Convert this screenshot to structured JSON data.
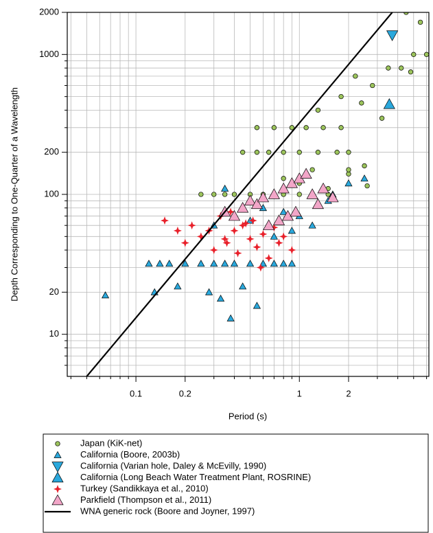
{
  "chart_data": {
    "type": "scatter",
    "x_label": "Period (s)",
    "y_label": "Depth Corresponding to One-Quarter of a Wavelength",
    "log_x": true,
    "log_y": true,
    "grid": true,
    "legend": "bottom",
    "xlim": [
      0.038,
      6.2
    ],
    "ylim": [
      5,
      2000
    ],
    "xticks": [
      0.1,
      0.2,
      1,
      2
    ],
    "yticks": [
      10,
      20,
      100,
      200,
      1000,
      2000
    ],
    "x_minor_ticks": [
      0.04,
      0.05,
      0.06,
      0.07,
      0.08,
      0.09,
      0.3,
      0.4,
      0.5,
      0.6,
      0.7,
      0.8,
      0.9,
      3,
      4,
      5,
      6
    ],
    "y_minor_ticks": [
      6,
      7,
      8,
      9,
      30,
      40,
      50,
      60,
      70,
      80,
      90,
      300,
      400,
      500,
      600,
      700,
      800,
      900
    ],
    "series": [
      {
        "name": "Japan (KiK-net)",
        "color": "#9cc45c",
        "marker": "circle",
        "x": [
          0.25,
          0.3,
          0.35,
          0.4,
          0.5,
          0.6,
          0.7,
          0.8,
          1.0,
          1.2,
          1.5,
          0.45,
          0.55,
          0.65,
          0.8,
          1.0,
          1.3,
          1.7,
          2.0,
          0.55,
          0.7,
          0.9,
          1.1,
          1.4,
          1.8,
          0.8,
          1.0,
          1.2,
          1.5,
          2.0,
          2.5,
          1.3,
          1.8,
          2.2,
          2.8,
          3.5,
          4.5,
          5.0,
          5.5,
          6.0,
          4.8,
          4.2,
          3.2,
          2.4,
          2.0,
          2.6
        ],
        "values": [
          100,
          100,
          100,
          100,
          100,
          100,
          100,
          100,
          100,
          100,
          100,
          200,
          200,
          200,
          200,
          200,
          200,
          200,
          200,
          300,
          300,
          300,
          300,
          300,
          300,
          130,
          120,
          150,
          110,
          140,
          160,
          400,
          500,
          700,
          600,
          800,
          2000,
          1000,
          1700,
          1000,
          750,
          800,
          350,
          450,
          150,
          115
        ]
      },
      {
        "name": "California (Boore, 2003b)",
        "color": "#2aa8dc",
        "marker": "triangle-up",
        "x": [
          0.065,
          0.12,
          0.14,
          0.16,
          0.2,
          0.25,
          0.3,
          0.35,
          0.4,
          0.5,
          0.6,
          0.7,
          0.8,
          0.13,
          0.18,
          0.28,
          0.33,
          0.45,
          0.55,
          0.38,
          0.3,
          0.4,
          0.5,
          0.6,
          0.8,
          1.0,
          1.3,
          1.6,
          2.0,
          2.5,
          0.7,
          0.9,
          1.2,
          1.5,
          0.35,
          0.9
        ],
        "values": [
          19,
          32,
          32,
          32,
          32,
          32,
          32,
          32,
          32,
          32,
          32,
          32,
          32,
          20,
          22,
          20,
          18,
          22,
          16,
          13,
          60,
          70,
          65,
          80,
          75,
          70,
          85,
          100,
          120,
          130,
          50,
          55,
          60,
          90,
          110,
          32
        ]
      },
      {
        "name": "California (Varian hole, Daley & McEvilly, 1990)",
        "color": "#2aa8dc",
        "marker": "triangle-down-large",
        "x": [
          3.7
        ],
        "values": [
          1375
        ]
      },
      {
        "name": "California (Long Beach Water Treatment Plant, ROSRINE)",
        "color": "#2aa8dc",
        "marker": "triangle-up-large",
        "x": [
          3.55
        ],
        "values": [
          441
        ]
      },
      {
        "name": "Turkey (Sandikkaya et al., 2010)",
        "color": "#e8202a",
        "marker": "star",
        "x": [
          0.15,
          0.18,
          0.2,
          0.22,
          0.25,
          0.3,
          0.33,
          0.36,
          0.4,
          0.42,
          0.45,
          0.5,
          0.52,
          0.55,
          0.6,
          0.65,
          0.7,
          0.75,
          0.8,
          0.9,
          0.38,
          0.47,
          0.58,
          0.28,
          0.35
        ],
        "values": [
          65,
          55,
          45,
          60,
          50,
          40,
          70,
          45,
          55,
          38,
          60,
          48,
          65,
          42,
          52,
          35,
          58,
          45,
          50,
          40,
          75,
          62,
          30,
          55,
          48
        ]
      },
      {
        "name": "Parkfield (Thompson et al., 2011)",
        "color": "#f2a6c8",
        "marker": "triangle-up-large",
        "x": [
          0.35,
          0.4,
          0.45,
          0.5,
          0.55,
          0.6,
          0.7,
          0.8,
          0.9,
          1.0,
          1.1,
          1.2,
          1.4,
          1.6,
          0.65,
          0.75,
          0.85,
          0.95,
          1.3
        ],
        "values": [
          75,
          70,
          80,
          90,
          85,
          95,
          100,
          110,
          120,
          130,
          140,
          100,
          110,
          95,
          60,
          65,
          70,
          75,
          85
        ]
      },
      {
        "name": "WNA generic rock (Boore and Joyner, 1997)",
        "color": "#000000",
        "marker": "line",
        "x": [
          0.05,
          3.7
        ],
        "values": [
          5,
          2000
        ]
      }
    ]
  }
}
